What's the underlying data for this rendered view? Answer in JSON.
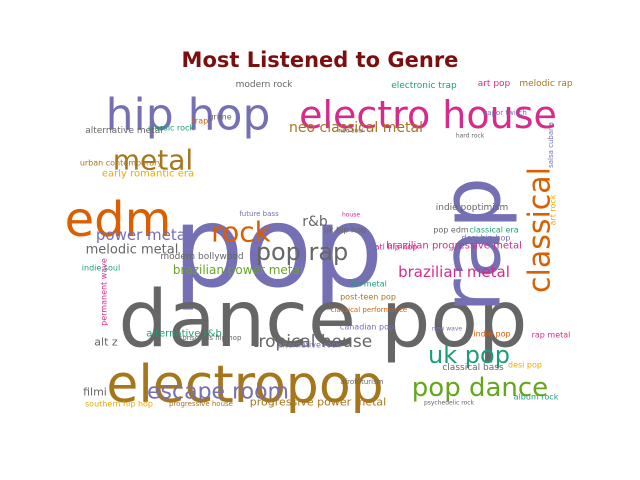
{
  "title": "Most Listened to Genre",
  "palette": {
    "purple": "#7570b3",
    "magenta": "#d62b8c",
    "orange": "#d95f02",
    "teal": "#1b9e77",
    "gold": "#a6761d",
    "gray": "#666666",
    "green": "#66a61e",
    "yellow": "#e6ab02"
  },
  "words": [
    {
      "text": "pop",
      "color": "#7570b3"
    },
    {
      "text": "dance pop",
      "color": "#666666"
    },
    {
      "text": "electropop",
      "color": "#a6761d"
    },
    {
      "text": "rap",
      "color": "#7570b3"
    },
    {
      "text": "hip hop",
      "color": "#7570b3"
    },
    {
      "text": "electro house",
      "color": "#d62b8c"
    },
    {
      "text": "edm",
      "color": "#d95f02"
    },
    {
      "text": "metal",
      "color": "#a6761d"
    },
    {
      "text": "pop dance",
      "color": "#66a61e"
    },
    {
      "text": "classical",
      "color": "#d95f02"
    },
    {
      "text": "rock",
      "color": "#d95f02"
    },
    {
      "text": "pop rap",
      "color": "#666666"
    },
    {
      "text": "escape room",
      "color": "#7570b3"
    },
    {
      "text": "uk pop",
      "color": "#1b9e77"
    },
    {
      "text": "neo classical metal",
      "color": "#a6761d"
    },
    {
      "text": "tropical house",
      "color": "#666666"
    },
    {
      "text": "brazilian metal",
      "color": "#d62b8c"
    },
    {
      "text": "power metal",
      "color": "#7570b3"
    },
    {
      "text": "melodic metal",
      "color": "#666666"
    },
    {
      "text": "brazilian power metal",
      "color": "#66a61e"
    },
    {
      "text": "r&b",
      "color": "#666666"
    },
    {
      "text": "progressive power metal",
      "color": "#a6761d"
    },
    {
      "text": "brazilian progressive metal",
      "color": "#d62b8c"
    },
    {
      "text": "alt z",
      "color": "#666666"
    },
    {
      "text": "filmi",
      "color": "#666666"
    },
    {
      "text": "alternative r&b",
      "color": "#1b9e77"
    },
    {
      "text": "modern bollywood",
      "color": "#666666"
    },
    {
      "text": "early romantic era",
      "color": "#e6ab02"
    },
    {
      "text": "indie poptimism",
      "color": "#666666"
    },
    {
      "text": "alternative metal",
      "color": "#666666"
    },
    {
      "text": "urban contemporary",
      "color": "#a6761d"
    },
    {
      "text": "indie soul",
      "color": "#1b9e77"
    },
    {
      "text": "modern rock",
      "color": "#666666"
    },
    {
      "text": "electronic trap",
      "color": "#1b9e77"
    },
    {
      "text": "art pop",
      "color": "#d62b8c"
    },
    {
      "text": "melodic rap",
      "color": "#a6761d"
    },
    {
      "text": "classical bass",
      "color": "#666666"
    },
    {
      "text": "southern hip hop",
      "color": "#e6ab02"
    },
    {
      "text": "progressive house",
      "color": "#a6761d"
    },
    {
      "text": "post-teen pop",
      "color": "#a6761d"
    },
    {
      "text": "canadian pop",
      "color": "#7570b3"
    },
    {
      "text": "nu metal",
      "color": "#1b9e77"
    },
    {
      "text": "atl hip hop",
      "color": "#d62b8c"
    },
    {
      "text": "uk hip hop",
      "color": "#666666"
    },
    {
      "text": "pop edm",
      "color": "#666666"
    },
    {
      "text": "desi hip hop",
      "color": "#7570b3"
    },
    {
      "text": "classical era",
      "color": "#1b9e77"
    },
    {
      "text": "art rock",
      "color": "#e6ab02"
    },
    {
      "text": "rap metal",
      "color": "#d62b8c"
    },
    {
      "text": "desi pop",
      "color": "#e6ab02"
    },
    {
      "text": "indie pop",
      "color": "#d95f02"
    },
    {
      "text": "album rock",
      "color": "#1b9e77"
    },
    {
      "text": "alternative rock",
      "color": "#7570b3"
    },
    {
      "text": "classical performance",
      "color": "#d95f02"
    },
    {
      "text": "conscious hip hop",
      "color": "#666666"
    },
    {
      "text": "afrofuturism",
      "color": "#666666"
    },
    {
      "text": "grime",
      "color": "#666666"
    },
    {
      "text": "trap",
      "color": "#d95f02"
    },
    {
      "text": "classic rock",
      "color": "#1b9e77"
    },
    {
      "text": "future bass",
      "color": "#7570b3"
    },
    {
      "text": "house",
      "color": "#d62b8c"
    },
    {
      "text": "permanent wave",
      "color": "#d62b8c"
    },
    {
      "text": "salsa cubana",
      "color": "#7570b3"
    },
    {
      "text": "new wave",
      "color": "#7570b3"
    },
    {
      "text": "psychedelic rock",
      "color": "#666666"
    },
    {
      "text": "vapor twitch",
      "color": "#7570b3"
    },
    {
      "text": "hard rock",
      "color": "#666666"
    },
    {
      "text": "neo soul",
      "color": "#666666"
    }
  ]
}
